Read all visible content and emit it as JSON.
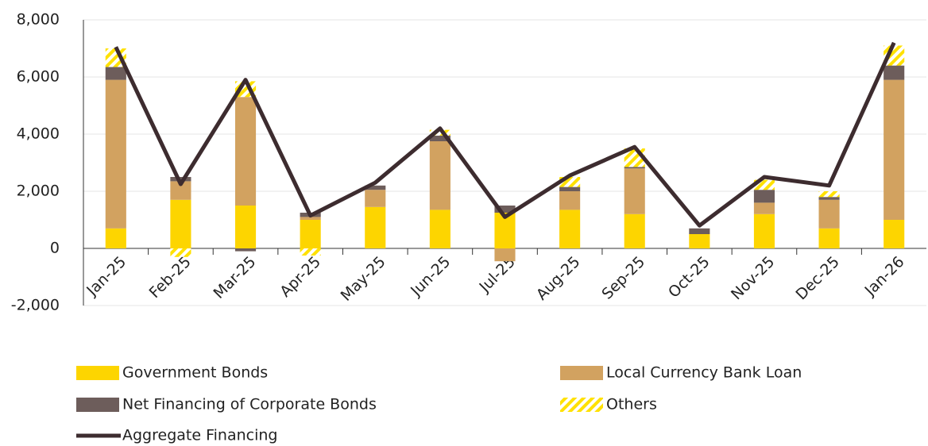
{
  "chart_data": {
    "type": "bar",
    "categories": [
      "Jan-25",
      "Feb-25",
      "Mar-25",
      "Apr-25",
      "May-25",
      "Jun-25",
      "Jul-25",
      "Aug-25",
      "Sep-25",
      "Oct-25",
      "Nov-25",
      "Dec-25",
      "Jan-26"
    ],
    "series": [
      {
        "name": "Government Bonds",
        "color": "#fdd500",
        "values": [
          700,
          1700,
          1500,
          1000,
          1450,
          1350,
          1250,
          1350,
          1200,
          500,
          1200,
          700,
          1000
        ]
      },
      {
        "name": "Local Currency Bank Loan",
        "color": "#d2a260",
        "values": [
          5200,
          650,
          3800,
          100,
          600,
          2400,
          -450,
          650,
          1600,
          0,
          400,
          1000,
          4900
        ]
      },
      {
        "name": "Net Financing of Corporate Bonds",
        "color": "#6d5d5b",
        "values": [
          450,
          150,
          -100,
          150,
          150,
          200,
          250,
          150,
          50,
          200,
          450,
          100,
          500
        ]
      },
      {
        "name": "Others",
        "color": "#ffe100",
        "pattern": "hatch",
        "values": [
          650,
          -300,
          550,
          -250,
          0,
          200,
          0,
          350,
          650,
          0,
          350,
          200,
          700
        ]
      },
      {
        "name": "Aggregate Financing",
        "color": "#3d2c2f",
        "type": "line",
        "values": [
          7050,
          2250,
          5900,
          1150,
          2300,
          4200,
          1100,
          2550,
          3550,
          800,
          2500,
          2200,
          7200
        ]
      }
    ],
    "ylim": [
      -2000,
      8000
    ],
    "yticks": [
      {
        "value": -2000,
        "label": "-2,000"
      },
      0,
      {
        "value": 2000,
        "label": "2,000"
      },
      {
        "value": 4000,
        "label": "4,000"
      },
      {
        "value": 6000,
        "label": "6,000"
      },
      {
        "value": 8000,
        "label": "8,000"
      }
    ],
    "grid": true,
    "legend": "bottom"
  }
}
